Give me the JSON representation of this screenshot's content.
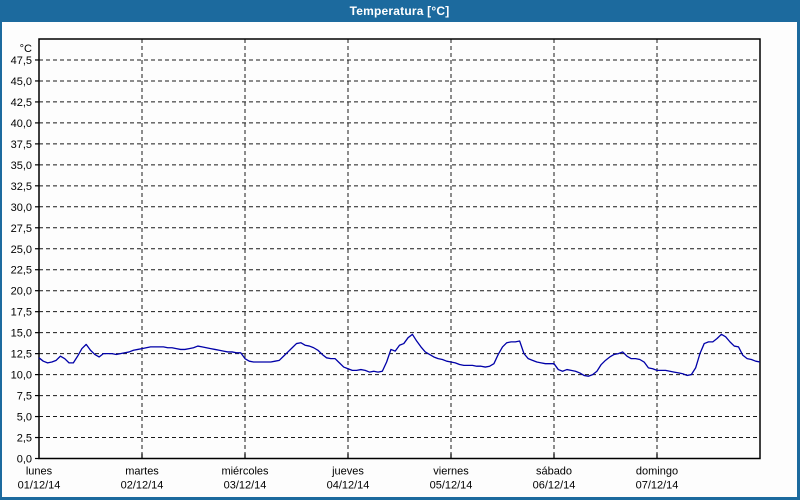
{
  "window": {
    "title": "Temperatura [°C]"
  },
  "colors": {
    "frame_blue": "#1c6a9e",
    "background": "#fdfdfd",
    "line_blue": "#0000a8",
    "grid_black": "#1a1a1a",
    "text_black": "#000000",
    "title_text": "#ffffff"
  },
  "chart_data": {
    "type": "line",
    "title": "Temperatura [°C]",
    "ylabel": "°C",
    "grid": "dashed",
    "legend": "none",
    "y_axis": {
      "min": 0,
      "max": 50,
      "tick_step": 2.5,
      "decimal_separator": ",",
      "tick_labels": [
        "0,0",
        "2,5",
        "5,0",
        "7,5",
        "10,0",
        "12,5",
        "15,0",
        "17,5",
        "20,0",
        "22,5",
        "25,0",
        "27,5",
        "30,0",
        "32,5",
        "35,0",
        "37,5",
        "40,0",
        "42,5",
        "45,0",
        "47,5"
      ]
    },
    "x_axis": {
      "days": [
        {
          "name": "lunes",
          "date": "01/12/14"
        },
        {
          "name": "martes",
          "date": "02/12/14"
        },
        {
          "name": "miércoles",
          "date": "03/12/14"
        },
        {
          "name": "jueves",
          "date": "04/12/14"
        },
        {
          "name": "viernes",
          "date": "05/12/14"
        },
        {
          "name": "sábado",
          "date": "06/12/14"
        },
        {
          "name": "domingo",
          "date": "07/12/14"
        }
      ]
    },
    "series": [
      {
        "name": "Temperatura",
        "unit": "°C",
        "samples_per_day": 24,
        "values": [
          12.0,
          11.6,
          11.4,
          11.5,
          11.7,
          12.2,
          11.9,
          11.4,
          11.4,
          12.2,
          13.1,
          13.6,
          12.9,
          12.4,
          12.1,
          12.5,
          12.5,
          12.5,
          12.4,
          12.5,
          12.6,
          12.7,
          12.9,
          13.0,
          13.1,
          13.2,
          13.3,
          13.3,
          13.3,
          13.3,
          13.2,
          13.2,
          13.1,
          13.0,
          13.0,
          13.1,
          13.2,
          13.4,
          13.3,
          13.2,
          13.1,
          13.0,
          12.9,
          12.8,
          12.7,
          12.7,
          12.6,
          12.6,
          11.9,
          11.6,
          11.5,
          11.5,
          11.5,
          11.5,
          11.5,
          11.6,
          11.7,
          12.2,
          12.7,
          13.2,
          13.7,
          13.8,
          13.5,
          13.4,
          13.2,
          12.9,
          12.4,
          12.0,
          11.9,
          11.9,
          11.4,
          10.9,
          10.7,
          10.5,
          10.5,
          10.6,
          10.5,
          10.3,
          10.4,
          10.3,
          10.4,
          11.5,
          13.0,
          12.8,
          13.5,
          13.7,
          14.4,
          14.8,
          14.0,
          13.3,
          12.7,
          12.4,
          12.1,
          11.9,
          11.8,
          11.6,
          11.5,
          11.4,
          11.2,
          11.1,
          11.1,
          11.1,
          11.0,
          11.0,
          10.9,
          11.0,
          11.3,
          12.4,
          13.3,
          13.8,
          13.9,
          13.9,
          14.0,
          12.5,
          11.9,
          11.7,
          11.5,
          11.4,
          11.3,
          11.3,
          11.3,
          10.6,
          10.4,
          10.6,
          10.5,
          10.4,
          10.2,
          9.9,
          9.8,
          10.0,
          10.4,
          11.2,
          11.7,
          12.1,
          12.4,
          12.5,
          12.7,
          12.2,
          11.9,
          11.9,
          11.8,
          11.5,
          10.8,
          10.7,
          10.5,
          10.5,
          10.5,
          10.4,
          10.3,
          10.2,
          10.1,
          9.9,
          10.0,
          10.8,
          12.5,
          13.7,
          13.9,
          13.9,
          14.3,
          14.8,
          14.5,
          13.9,
          13.4,
          13.3,
          12.3,
          11.9,
          11.8,
          11.6,
          11.5
        ]
      }
    ]
  }
}
